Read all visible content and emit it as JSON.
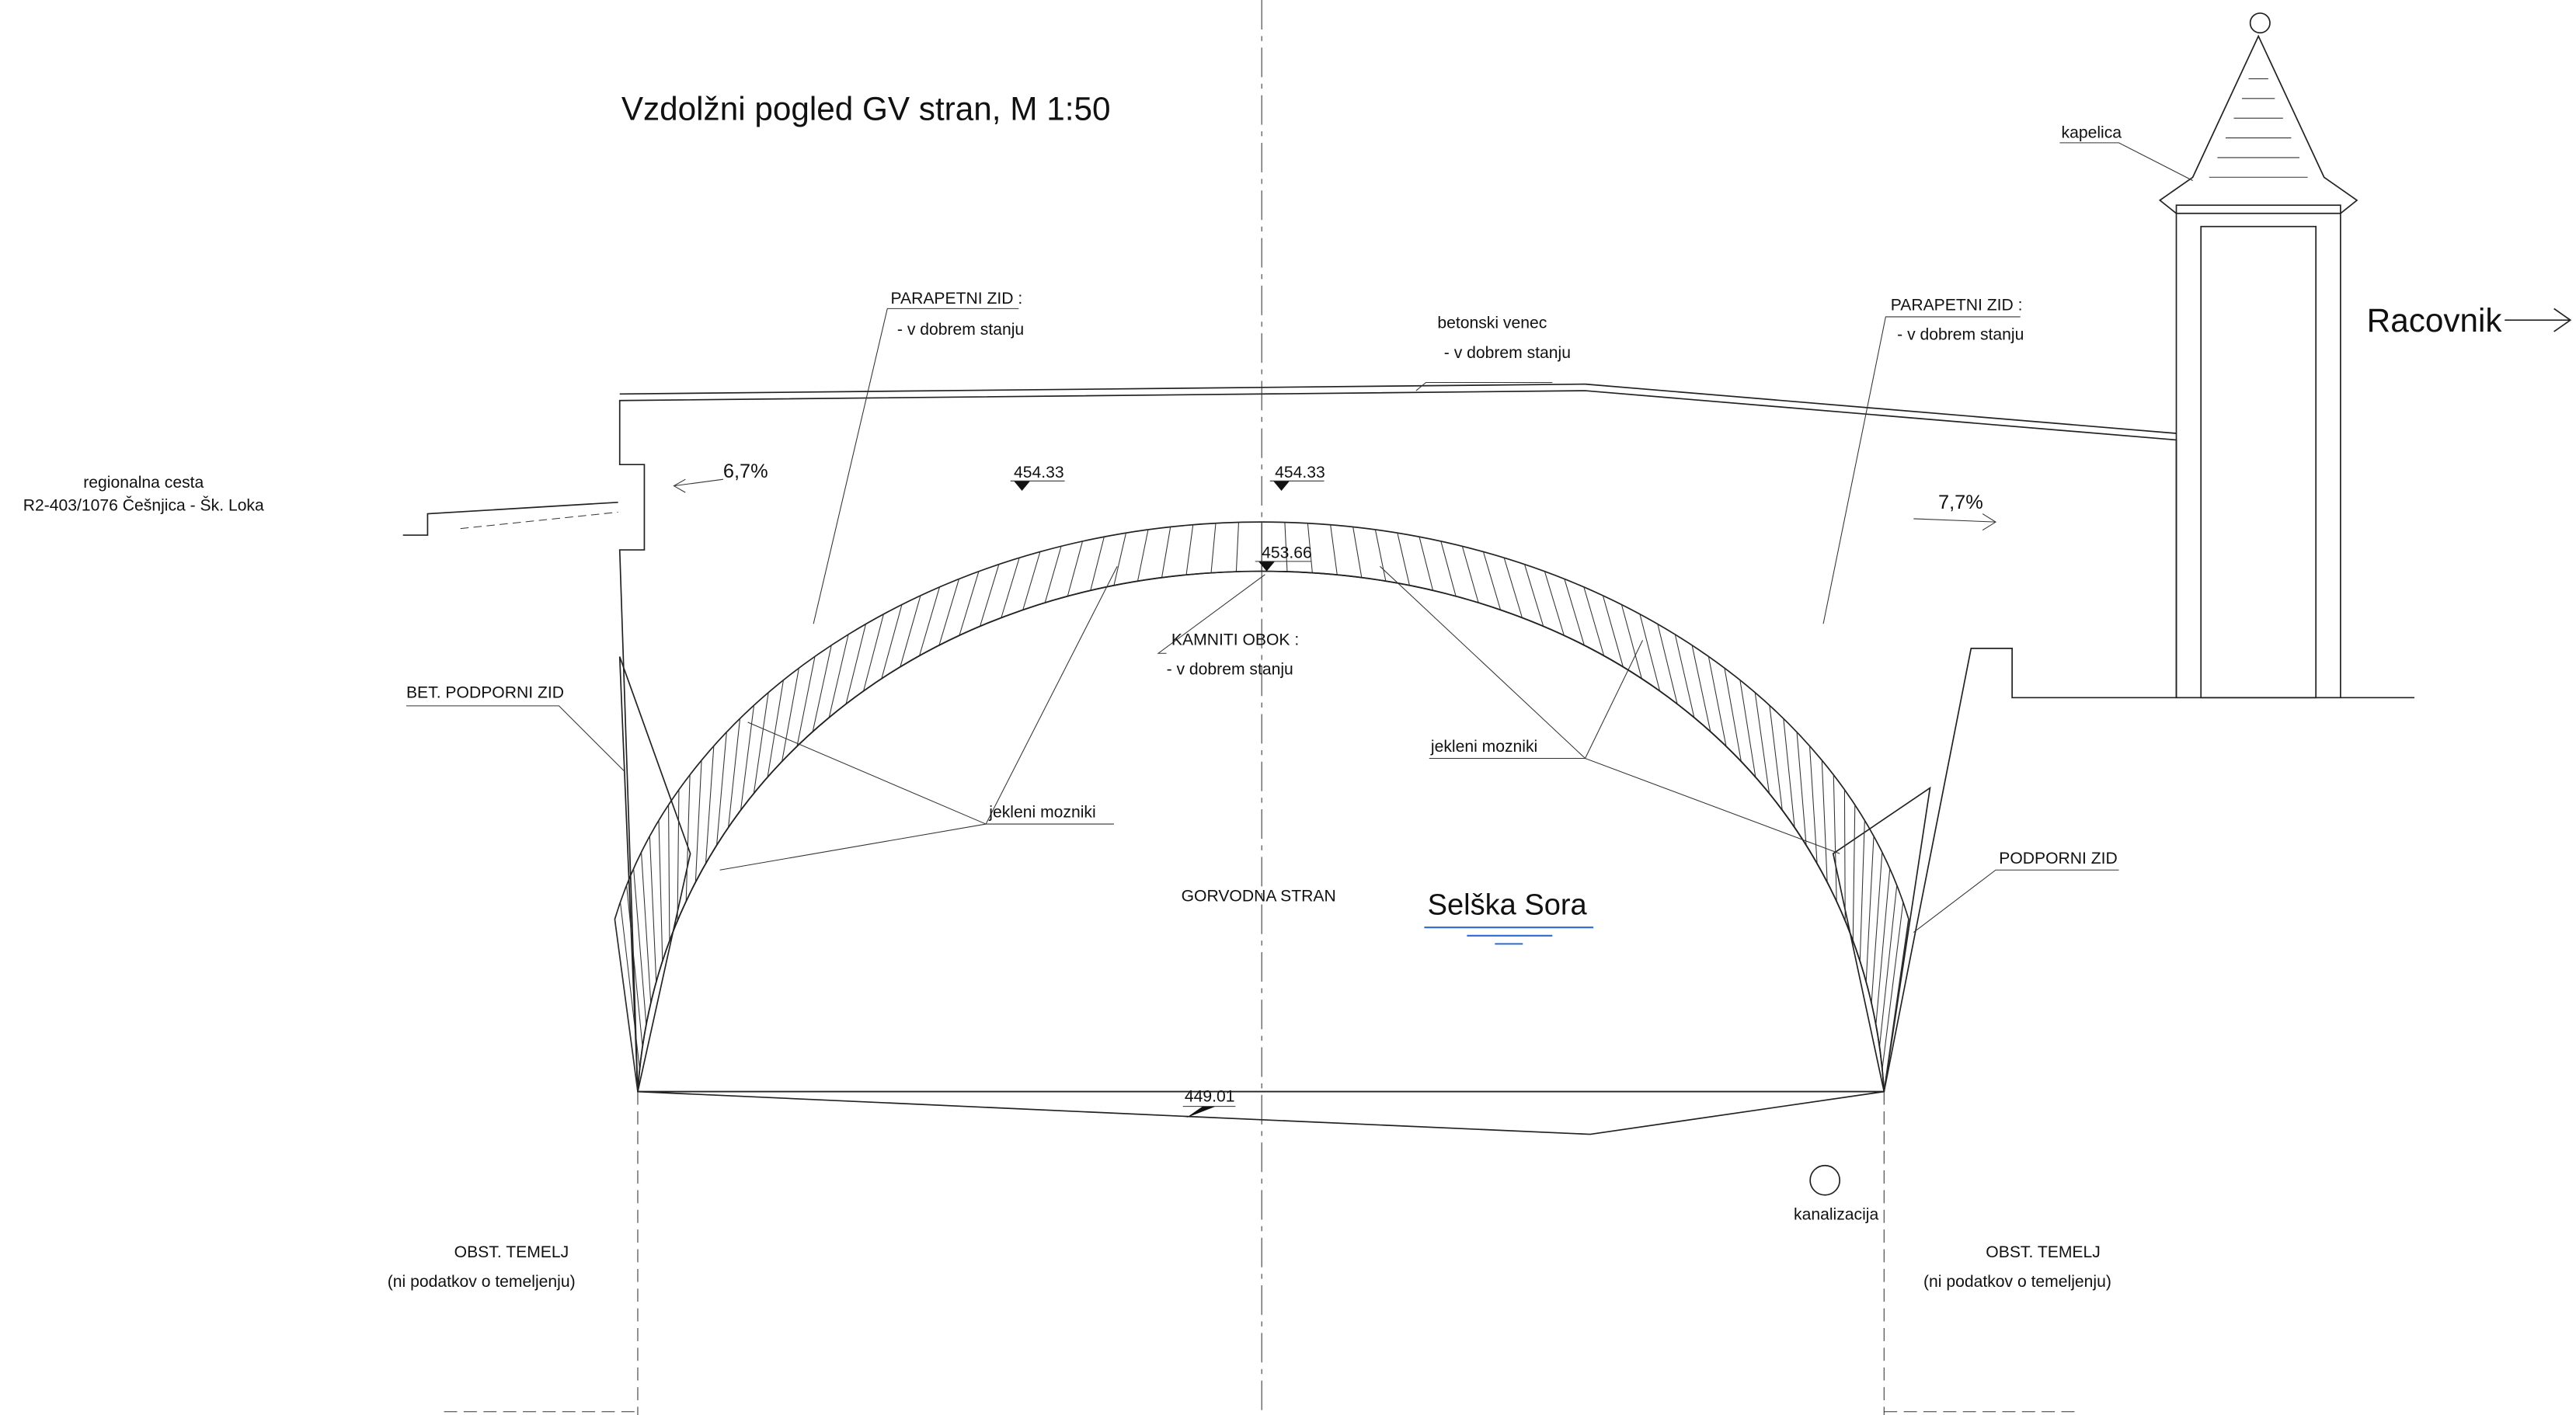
{
  "title": "Vzdolžni pogled GV stran, M 1:50",
  "labels": {
    "parapet_left": "PARAPETNI ZID :",
    "parapet_left_state": "- v dobrem stanju",
    "venec": "betonski venec",
    "venec_state": "- v dobrem stanju",
    "parapet_right": "PARAPETNI ZID :",
    "parapet_right_state": "- v dobrem stanju",
    "road_1": "regionalna cesta",
    "road_2": "R2-403/1076 Češnjica - Šk. Loka",
    "slope_left": "6,7%",
    "slope_right": "7,7%",
    "level_left": "454.33",
    "level_mid": "454.33",
    "level_arch": "453.66",
    "level_bed": "449.01",
    "arch": "KAMNITI OBOK :",
    "arch_state": "- v dobrem stanju",
    "bet_wall": "BET. PODPORNI ZID",
    "dowels_left": "jekleni mozniki",
    "dowels_right": "jekleni mozniki",
    "upstream": "GORVODNA STRAN",
    "river": "Selška Sora",
    "wall_right": "PODPORNI ZID",
    "sewer": "kanalizacija",
    "found_left": "OBST. TEMELJ",
    "found_left_note": "(ni podatkov o temeljenju)",
    "found_right": "OBST. TEMELJ",
    "found_right_note": "(ni podatkov o temeljenju)",
    "chapel": "kapelica",
    "direction": "Racovnik"
  }
}
